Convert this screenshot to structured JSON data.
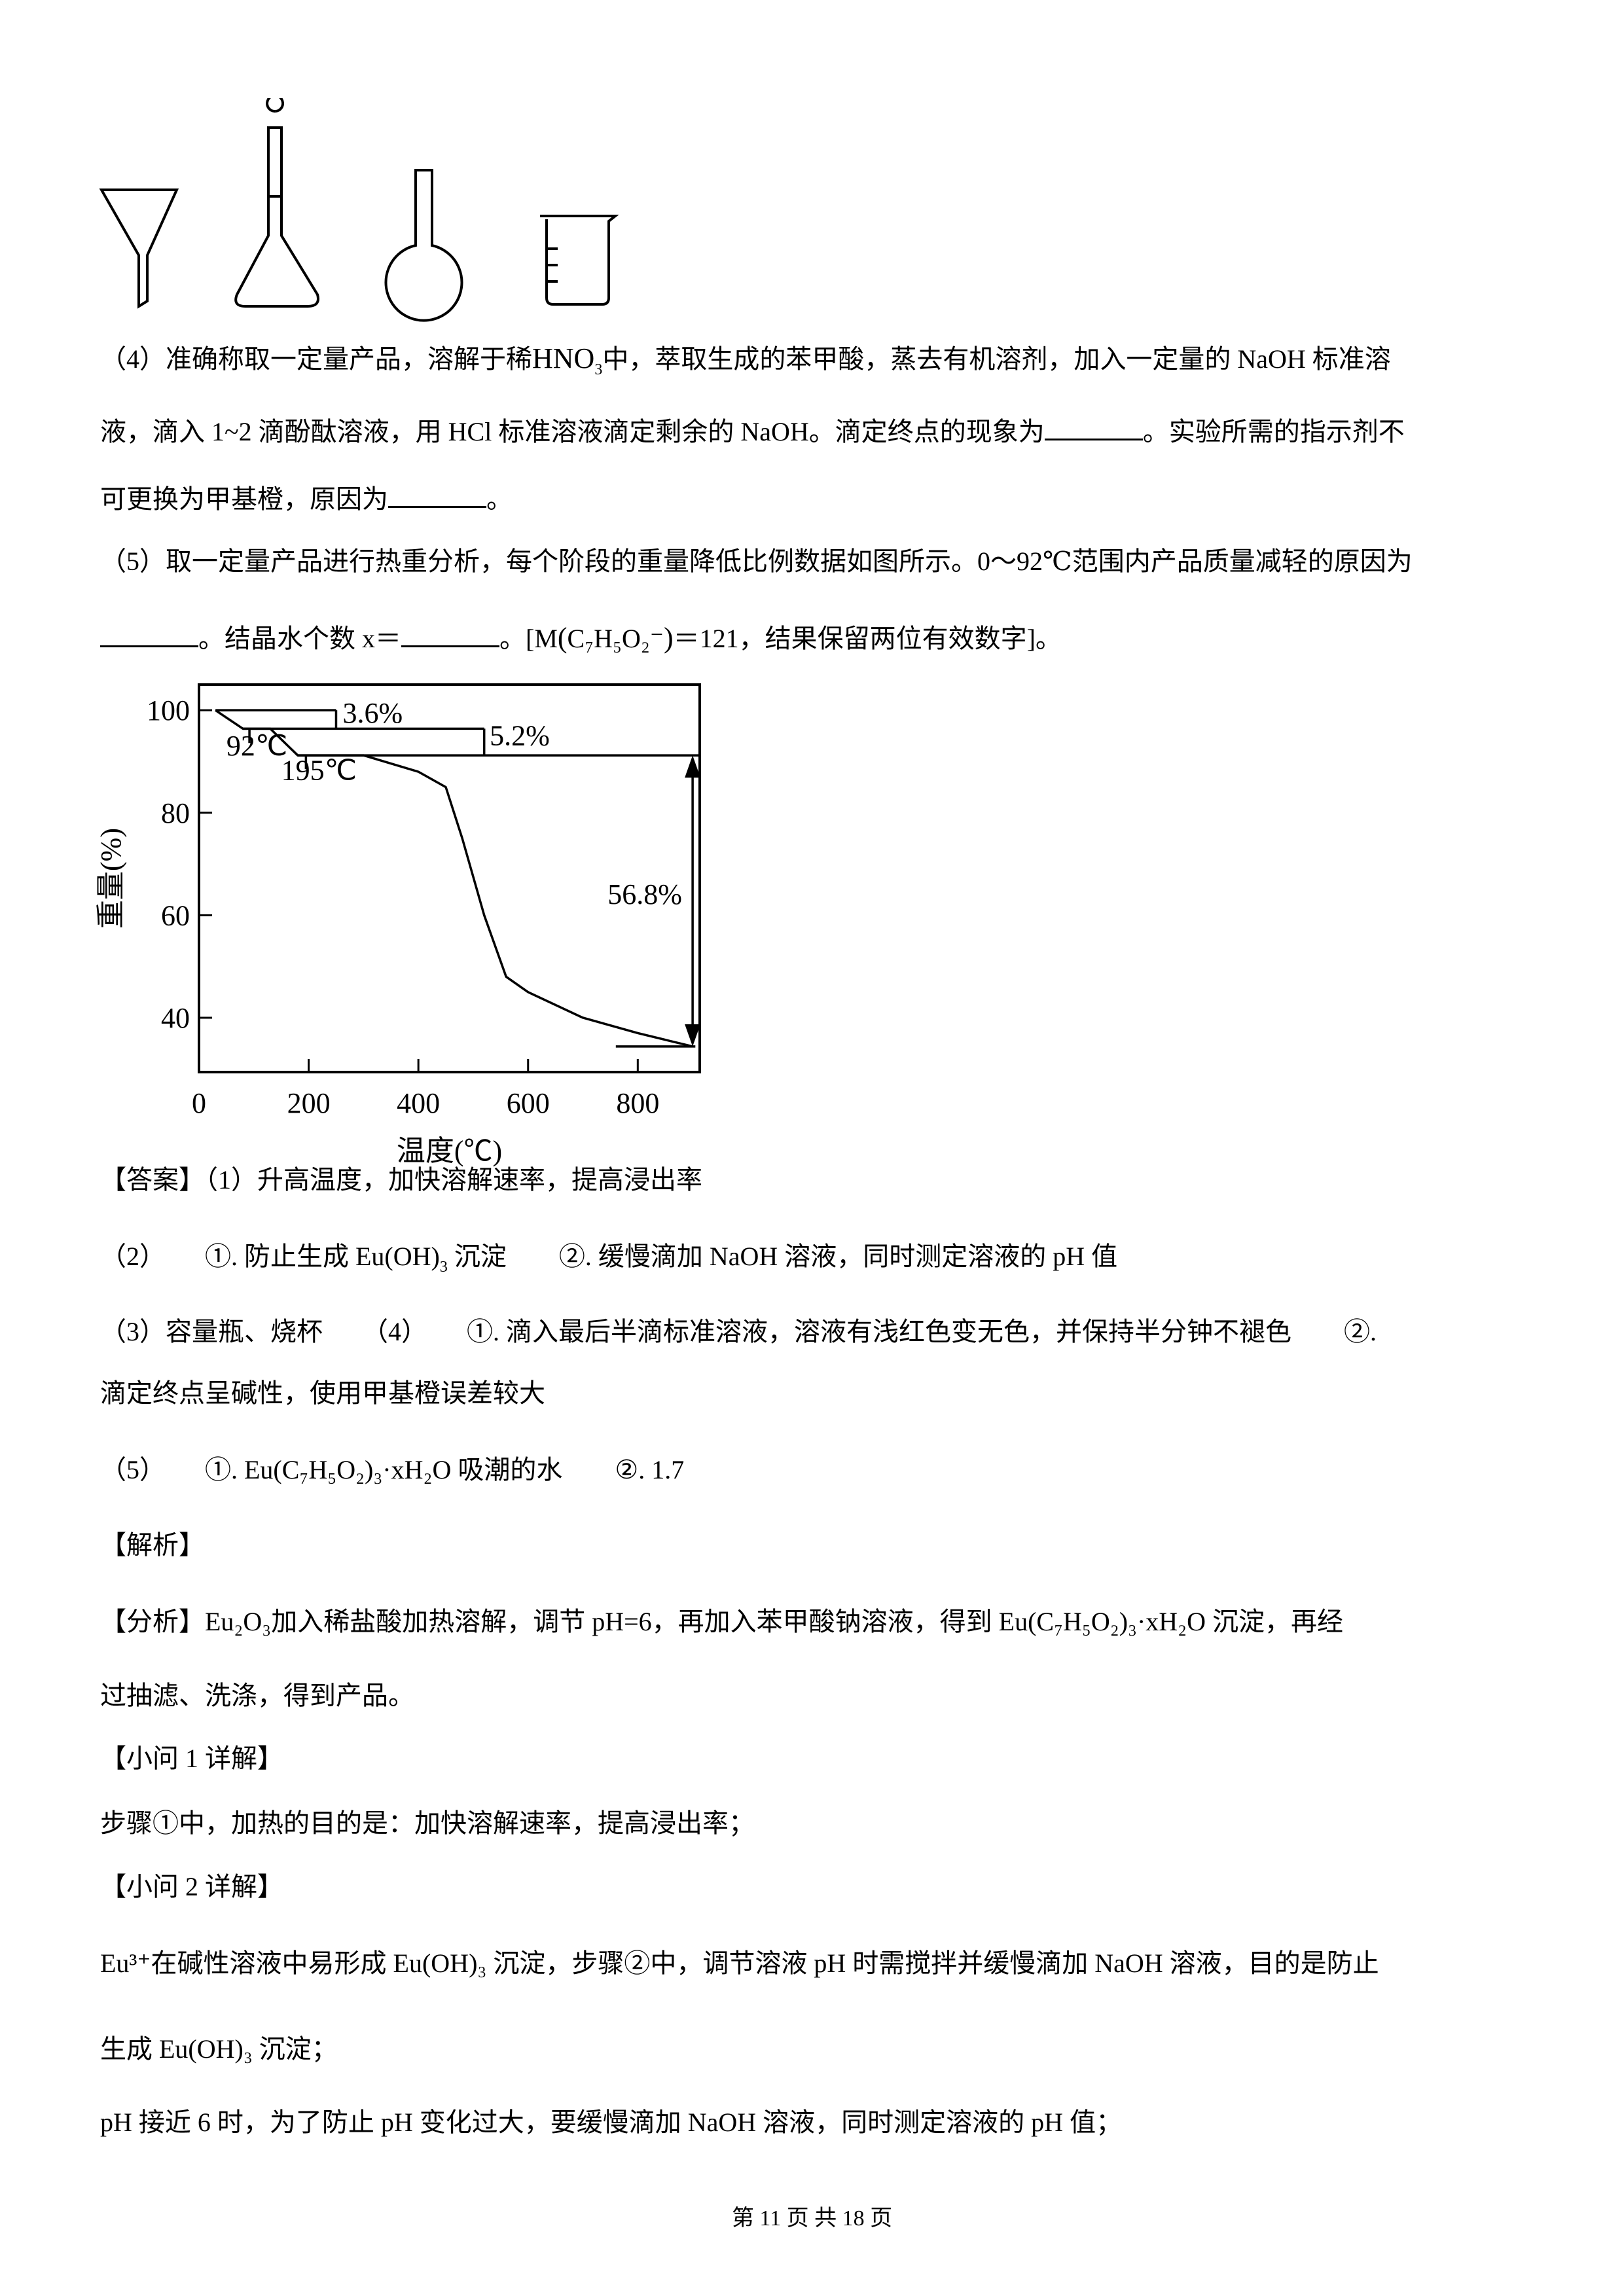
{
  "q4": {
    "line1": "（4）准确称取一定量产品，溶解于稀",
    "hno3": "HNO",
    "hno3_sub": "3",
    "line1b": "中，萃取生成的苯甲酸，蒸去有机溶剂，加入一定量的 NaOH 标准溶",
    "line2": "液，滴入 1~2 滴酚酞溶液，用 HCl 标准溶液滴定剩余的 NaOH。滴定终点的现象为",
    "line2b": "。实验所需的指示剂不",
    "line3": "可更换为甲基橙，原因为",
    "line3b": "。"
  },
  "q5": {
    "line1": "（5）取一定量产品进行热重分析，每个阶段的重量降低比例数据如图所示。0～92℃范围内产品质量减轻的原因为",
    "line2a": "。结晶水个数 x＝",
    "line2b": "。[M",
    "formula": "C₇H₅O₂⁻",
    "line2c": "＝121，结果保留两位有效数字]。"
  },
  "chart_data": {
    "type": "line",
    "xlabel": "温度(℃)",
    "ylabel": "重量(%)",
    "xticks": [
      "0",
      "200",
      "400",
      "600",
      "800"
    ],
    "yticks": [
      "40",
      "60",
      "80",
      "100"
    ],
    "xlim": [
      0,
      913
    ],
    "ylim": [
      29.4,
      105
    ],
    "series": [
      {
        "x": [
          30,
          80,
          130,
          180,
          300,
          400,
          450,
          480,
          520,
          560,
          600,
          700,
          800,
          900
        ],
        "y": [
          100,
          96.4,
          96.4,
          91.2,
          91.2,
          88,
          85,
          75,
          60,
          48,
          45,
          40,
          37,
          34.4
        ]
      }
    ],
    "annotations": [
      "3.6%",
      "5.2%",
      "56.8%",
      "92℃",
      "195℃"
    ]
  },
  "answer": {
    "l1_tag": "【答案】",
    "l1": "（1）升高温度，加快溶解速率，提高浸出率",
    "l2a": "（2）　　①. 防止生成 Eu(OH)",
    "l2a_sub": "3",
    "l2b": " 沉淀",
    "l2c": "②. 缓慢滴加 NaOH 溶液，同时测定溶液的 pH 值",
    "l3": "（3）容量瓶、烧杯　　（4）　　①. 滴入最后半滴标准溶液，溶液有浅红色变无色，并保持半分钟不褪色　　②.",
    "l4": "滴定终点呈碱性，使用甲基橙误差较大",
    "l5a": "（5）　　①. Eu(C₇H₅O₂)₃·xH₂O 吸潮的水",
    "l5b": "②. 1.7"
  },
  "analysis": {
    "title": "【解析】",
    "fenxi_tag": "【分析】",
    "fenxi": "Eu₂O₃加入稀盐酸加热溶解，调节 pH=6，再加入苯甲酸钠溶液，得到 Eu(C₇H₅O₂)₃·xH₂O 沉淀，再经",
    "fenxi2": "过抽滤、洗涤，得到产品。",
    "q1_title": "【小问 1 详解】",
    "q1": "步骤①中，加热的目的是：加快溶解速率，提高浸出率；",
    "q2_title": "【小问 2 详解】",
    "q2a": "Eu³⁺在碱性溶液中易形成 Eu(OH)₃ 沉淀，步骤②中，调节溶液 pH 时需搅拌并缓慢滴加 NaOH 溶液，目的是防止",
    "q2b": "生成 Eu(OH)₃ 沉淀；",
    "q2c": "pH 接近 6 时，为了防止 pH 变化过大，要缓慢滴加 NaOH 溶液，同时测定溶液的 pH 值；"
  },
  "footer": "第 11 页 共 18 页"
}
